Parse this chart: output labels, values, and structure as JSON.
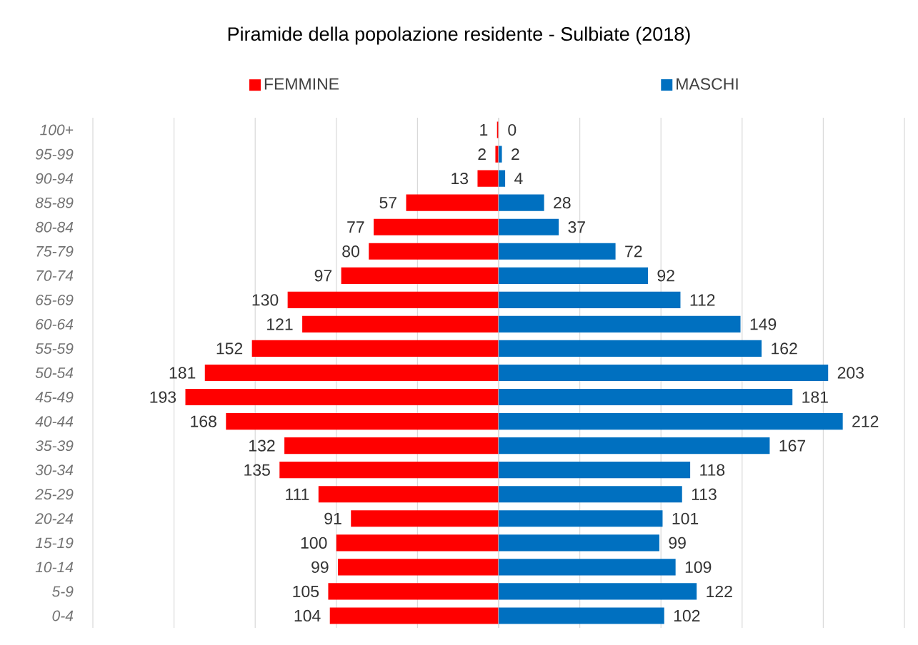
{
  "chart_data": [
    {
      "type": "bar",
      "orientation": "horizontal",
      "title": "Piramide della popolazione residente - Sulbiate (2018)",
      "categories": [
        "100+",
        "95-99",
        "90-94",
        "85-89",
        "80-84",
        "75-79",
        "70-74",
        "65-69",
        "60-64",
        "55-59",
        "50-54",
        "45-49",
        "40-44",
        "35-39",
        "30-34",
        "25-29",
        "20-24",
        "15-19",
        "10-14",
        "5-9",
        "0-4"
      ],
      "series": [
        {
          "name": "FEMMINE",
          "color": "#ff0000",
          "values": [
            1,
            2,
            13,
            57,
            77,
            80,
            97,
            130,
            121,
            152,
            181,
            193,
            168,
            132,
            135,
            111,
            91,
            100,
            99,
            105,
            104
          ]
        }
      ],
      "xlim": [
        250,
        0
      ],
      "xticks": [
        250,
        200,
        150,
        100,
        50,
        0
      ],
      "tick_labels": "y",
      "grid": "x",
      "legend": "top",
      "data_labels": true
    },
    {
      "type": "bar",
      "orientation": "horizontal",
      "categories": [
        null,
        null,
        null,
        null,
        null,
        null,
        null,
        null,
        null,
        null,
        null,
        null,
        null,
        null,
        null,
        null,
        null,
        null,
        null,
        null,
        null
      ],
      "series": [
        {
          "name": "MASCHI",
          "color": "#0070c0",
          "values": [
            0,
            2,
            4,
            28,
            37,
            72,
            92,
            112,
            149,
            162,
            203,
            181,
            212,
            167,
            118,
            113,
            101,
            99,
            109,
            122,
            102
          ]
        }
      ],
      "xlim": [
        0,
        250
      ],
      "xticks": [
        0,
        50,
        100,
        150,
        200,
        250
      ],
      "tick_labels": false,
      "grid": "x",
      "legend": "top",
      "data_labels": true
    }
  ]
}
